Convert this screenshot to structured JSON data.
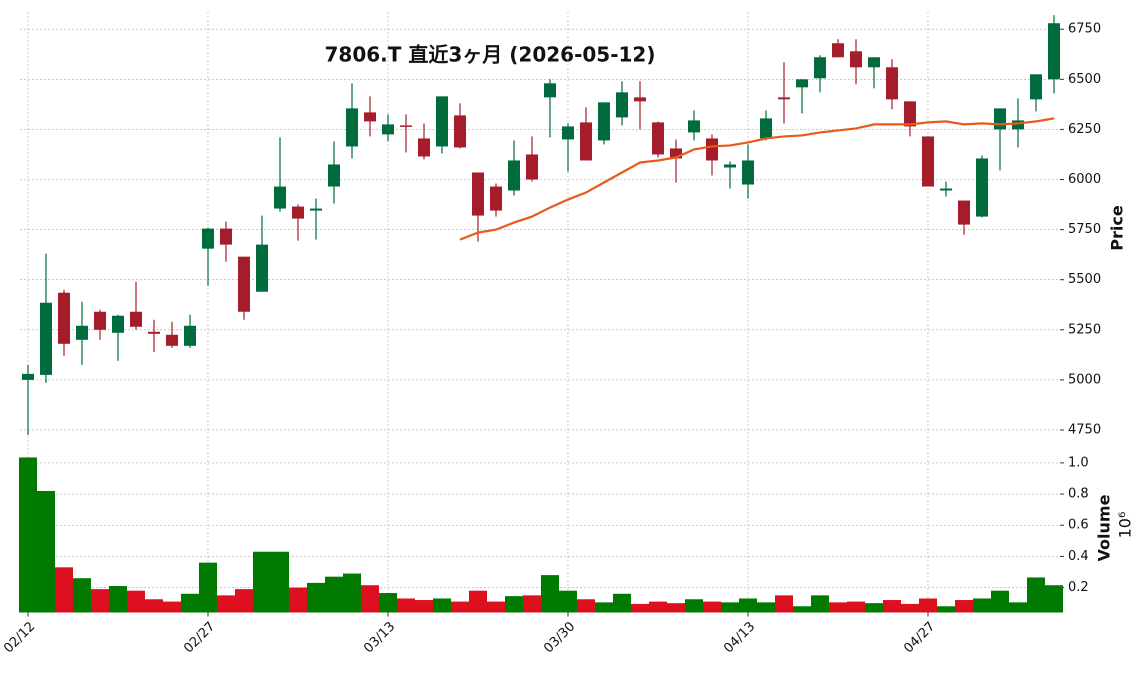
{
  "chart_data": {
    "type": "candlestick",
    "title": "7806.T  直近3ヶ月 (2026-05-12)",
    "categories": [
      "02/12",
      null,
      null,
      null,
      null,
      null,
      null,
      null,
      null,
      null,
      "02/27",
      null,
      null,
      null,
      null,
      null,
      null,
      null,
      null,
      null,
      "03/13",
      null,
      null,
      null,
      null,
      null,
      null,
      null,
      null,
      null,
      "03/30",
      null,
      null,
      null,
      null,
      null,
      null,
      null,
      null,
      null,
      "04/13",
      null,
      null,
      null,
      null,
      null,
      null,
      null,
      null,
      null,
      "04/27",
      null,
      null,
      null,
      null,
      null,
      null,
      null
    ],
    "open": [
      5000,
      5025,
      5435,
      5200,
      5340,
      5235,
      5340,
      5240,
      5225,
      5170,
      5655,
      5755,
      5615,
      5440,
      5855,
      5865,
      5845,
      5965,
      6165,
      6335,
      6225,
      6270,
      6205,
      6165,
      6320,
      6035,
      5965,
      5945,
      6125,
      6410,
      6200,
      6285,
      6195,
      6310,
      6410,
      6285,
      6155,
      6235,
      6205,
      6060,
      5975,
      6205,
      6410,
      6460,
      6505,
      6680,
      6640,
      6560,
      6560,
      6390,
      6215,
      5945,
      5895,
      5815,
      6250,
      6250,
      6400,
      6500
    ],
    "high": [
      5075,
      5630,
      5450,
      5390,
      5350,
      5325,
      5490,
      5300,
      5290,
      5325,
      5760,
      5790,
      5615,
      5820,
      6210,
      5875,
      5905,
      6190,
      6480,
      6415,
      6325,
      6325,
      6280,
      6415,
      6380,
      6035,
      5980,
      6195,
      6215,
      6500,
      6280,
      6360,
      6385,
      6490,
      6490,
      6290,
      6200,
      6345,
      6225,
      6090,
      6175,
      6345,
      6585,
      6500,
      6620,
      6700,
      6700,
      6610,
      6600,
      6390,
      6215,
      5990,
      5895,
      6120,
      6355,
      6405,
      6525,
      6820
    ],
    "low": [
      4725,
      4985,
      5120,
      5075,
      5200,
      5095,
      5250,
      5140,
      5160,
      5160,
      5470,
      5590,
      5300,
      5440,
      5840,
      5695,
      5700,
      5880,
      6105,
      6215,
      6190,
      6135,
      6100,
      6130,
      6155,
      5690,
      5815,
      5920,
      5990,
      6210,
      6040,
      6095,
      6175,
      6270,
      6250,
      6110,
      5985,
      6195,
      6020,
      5955,
      5905,
      6195,
      6280,
      6330,
      6435,
      6610,
      6475,
      6455,
      6350,
      6215,
      5965,
      5915,
      5725,
      5810,
      6045,
      6160,
      6340,
      6430
    ],
    "close": [
      5030,
      5385,
      5180,
      5270,
      5250,
      5320,
      5265,
      5230,
      5170,
      5270,
      5755,
      5675,
      5340,
      5675,
      5965,
      5805,
      5855,
      6075,
      6355,
      6290,
      6275,
      6265,
      6115,
      6415,
      6160,
      5820,
      5845,
      6095,
      6000,
      6480,
      6265,
      6095,
      6385,
      6435,
      6390,
      6125,
      6105,
      6295,
      6095,
      6075,
      6095,
      6305,
      6400,
      6500,
      6610,
      6610,
      6560,
      6610,
      6400,
      6265,
      5965,
      5955,
      5775,
      6105,
      6355,
      6295,
      6525,
      6780
    ],
    "up_color": "#006b3c",
    "down_color": "#a51c2a",
    "moving_average": {
      "color": "#e8591a",
      "values": [
        null,
        null,
        null,
        null,
        null,
        null,
        null,
        null,
        null,
        null,
        null,
        null,
        null,
        null,
        null,
        null,
        null,
        null,
        null,
        null,
        null,
        null,
        null,
        null,
        5700,
        5735,
        5750,
        5785,
        5815,
        5860,
        5900,
        5935,
        5985,
        6035,
        6085,
        6095,
        6110,
        6150,
        6165,
        6170,
        6185,
        6205,
        6215,
        6220,
        6235,
        6245,
        6255,
        6275,
        6275,
        6275,
        6285,
        6290,
        6275,
        6280,
        6275,
        6280,
        6290,
        6305
      ]
    },
    "ylabel": "Price",
    "ylim": [
      4675,
      6836
    ],
    "yticks": [
      4750,
      5000,
      5250,
      5500,
      5750,
      6000,
      6250,
      6500,
      6750
    ],
    "grid": true,
    "volume": {
      "ylabel": "Volume",
      "scale_label": "10⁶",
      "values": [
        1.035,
        0.82,
        0.33,
        0.26,
        0.19,
        0.21,
        0.18,
        0.125,
        0.11,
        0.16,
        0.36,
        0.15,
        0.19,
        0.43,
        0.43,
        0.2,
        0.23,
        0.27,
        0.29,
        0.215,
        0.165,
        0.13,
        0.12,
        0.13,
        0.11,
        0.18,
        0.11,
        0.145,
        0.15,
        0.28,
        0.18,
        0.125,
        0.105,
        0.16,
        0.095,
        0.11,
        0.1,
        0.125,
        0.11,
        0.105,
        0.13,
        0.105,
        0.15,
        0.08,
        0.15,
        0.105,
        0.11,
        0.1,
        0.12,
        0.095,
        0.13,
        0.08,
        0.12,
        0.13,
        0.18,
        0.105,
        0.265,
        0.215
      ],
      "up_color": "#007a00",
      "down_color": "#dd1020",
      "ylim": [
        0.04,
        1.07
      ],
      "yticks": [
        0.2,
        0.4,
        0.6,
        0.8,
        {
          "value": 1,
          "label": "1.0"
        }
      ]
    }
  }
}
